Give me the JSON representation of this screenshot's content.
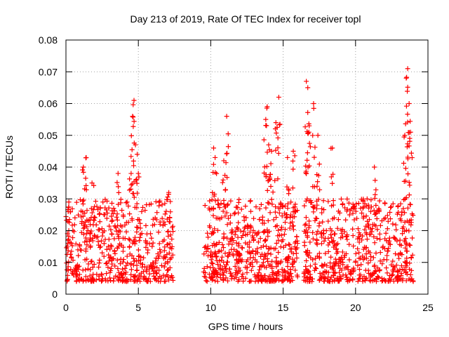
{
  "chart_data": {
    "type": "scatter",
    "title": "Day 213 of 2019, Rate Of TEC Index for receiver topl",
    "xlabel": "GPS time / hours",
    "ylabel": "ROTI / TECUs",
    "xlim": [
      0,
      25
    ],
    "ylim": [
      0,
      0.08
    ],
    "x_ticks": [
      0,
      5,
      10,
      15,
      20,
      25
    ],
    "x_tick_labels": [
      "0",
      "5",
      "10",
      "15",
      "20",
      "25"
    ],
    "y_ticks": [
      0,
      0.01,
      0.02,
      0.03,
      0.04,
      0.05,
      0.06,
      0.07,
      0.08
    ],
    "y_tick_labels": [
      "0",
      "0.01",
      "0.02",
      "0.03",
      "0.04",
      "0.05",
      "0.06",
      "0.07",
      "0.08"
    ],
    "grid": true,
    "marker": "+",
    "marker_color": "#ff0000",
    "series": [
      {
        "name": "ROTI",
        "clusters": [
          {
            "x_range": [
              0.0,
              7.4
            ],
            "base_range": [
              0.004,
              0.03
            ],
            "count": 520
          },
          {
            "x_range": [
              9.5,
              16.0
            ],
            "base_range": [
              0.004,
              0.03
            ],
            "count": 520
          },
          {
            "x_range": [
              16.4,
              24.0
            ],
            "base_range": [
              0.004,
              0.03
            ],
            "count": 560
          }
        ],
        "peaks": [
          {
            "x": 0.2,
            "y": 0.029
          },
          {
            "x": 1.2,
            "y": 0.04
          },
          {
            "x": 1.4,
            "y": 0.043
          },
          {
            "x": 1.8,
            "y": 0.035
          },
          {
            "x": 3.6,
            "y": 0.038
          },
          {
            "x": 4.5,
            "y": 0.038
          },
          {
            "x": 4.6,
            "y": 0.056
          },
          {
            "x": 4.7,
            "y": 0.061
          },
          {
            "x": 4.8,
            "y": 0.047
          },
          {
            "x": 5.0,
            "y": 0.038
          },
          {
            "x": 7.1,
            "y": 0.032
          },
          {
            "x": 10.2,
            "y": 0.046
          },
          {
            "x": 10.3,
            "y": 0.043
          },
          {
            "x": 10.9,
            "y": 0.042
          },
          {
            "x": 11.1,
            "y": 0.056
          },
          {
            "x": 13.8,
            "y": 0.055
          },
          {
            "x": 13.9,
            "y": 0.059
          },
          {
            "x": 14.0,
            "y": 0.047
          },
          {
            "x": 14.2,
            "y": 0.045
          },
          {
            "x": 14.5,
            "y": 0.054
          },
          {
            "x": 14.7,
            "y": 0.062
          },
          {
            "x": 15.3,
            "y": 0.043
          },
          {
            "x": 15.7,
            "y": 0.045
          },
          {
            "x": 16.6,
            "y": 0.067
          },
          {
            "x": 16.7,
            "y": 0.065
          },
          {
            "x": 16.8,
            "y": 0.053
          },
          {
            "x": 17.1,
            "y": 0.06
          },
          {
            "x": 17.4,
            "y": 0.05
          },
          {
            "x": 18.4,
            "y": 0.046
          },
          {
            "x": 20.8,
            "y": 0.03
          },
          {
            "x": 21.3,
            "y": 0.04
          },
          {
            "x": 23.4,
            "y": 0.05
          },
          {
            "x": 23.5,
            "y": 0.068
          },
          {
            "x": 23.6,
            "y": 0.071
          },
          {
            "x": 23.7,
            "y": 0.06
          },
          {
            "x": 23.8,
            "y": 0.051
          }
        ]
      }
    ]
  }
}
